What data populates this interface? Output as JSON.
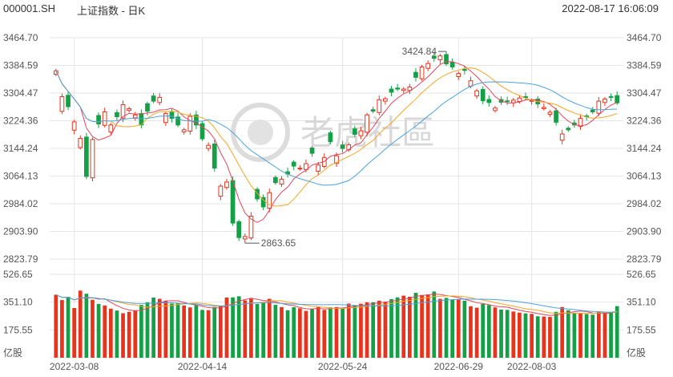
{
  "header": {
    "symbol": "000001.SH",
    "title": "上证指数 - 日K",
    "timestamp": "2022-08-17 16:06:09"
  },
  "watermark": {
    "text": "老虎社區"
  },
  "colors": {
    "up": "#e8341c",
    "down": "#15a047",
    "ma5": "#e0455b",
    "ma10": "#f5a623",
    "ma20": "#4aa3df",
    "grid": "#e6e6e6"
  },
  "chart_data": {
    "type": "candlestick",
    "price_ticks": [
      "3464.70",
      "3384.59",
      "3304.47",
      "3224.36",
      "3144.24",
      "3064.13",
      "2984.02",
      "2903.90",
      "2823.79"
    ],
    "volume_ticks": [
      "526.65",
      "351.10",
      "175.55"
    ],
    "volume_unit": "亿股",
    "x_ticks": [
      "2022-03-08",
      "2022-04-14",
      "2022-05-24",
      "2022-06-29",
      "2022-08-03"
    ],
    "annotations": {
      "high": "3424.84",
      "low": "2863.65"
    },
    "price_range": [
      2823.79,
      3464.7
    ],
    "volume_range": [
      0,
      526.65
    ],
    "grid": true,
    "moving_averages": [
      "MA5",
      "MA10",
      "MA20"
    ],
    "closes": [
      3369,
      3294,
      3265,
      3221,
      3173,
      3063,
      3170,
      3215,
      3250,
      3212,
      3236,
      3271,
      3259,
      3241,
      3212,
      3252,
      3281,
      3292,
      3245,
      3231,
      3212,
      3198,
      3237,
      3212,
      3172,
      3153,
      3087,
      3035,
      3047,
      2928,
      2886,
      2889,
      2948,
      2998,
      2975,
      3016,
      3045,
      3055,
      3070,
      3093,
      3087,
      3100,
      3130,
      3096,
      3118,
      3164,
      3123,
      3144,
      3155,
      3185,
      3195,
      3241,
      3252,
      3285,
      3288,
      3307,
      3316,
      3316,
      3322,
      3350,
      3380,
      3390,
      3405,
      3412,
      3389,
      3380,
      3361,
      3370,
      3340,
      3311,
      3282,
      3277,
      3261,
      3278,
      3280,
      3284,
      3290,
      3291,
      3283,
      3273,
      3263,
      3249,
      3220,
      3186,
      3198,
      3212,
      3231,
      3237,
      3250,
      3281,
      3287,
      3293,
      3276
    ],
    "volumes": [
      398,
      364,
      385,
      314,
      424,
      404,
      366,
      340,
      330,
      310,
      298,
      281,
      290,
      300,
      334,
      350,
      380,
      372,
      358,
      342,
      345,
      330,
      318,
      331,
      302,
      300,
      320,
      325,
      380,
      381,
      388,
      362,
      372,
      340,
      345,
      372,
      334,
      320,
      300,
      319,
      312,
      296,
      310,
      320,
      302,
      318,
      320,
      312,
      342,
      330,
      341,
      350,
      350,
      360,
      354,
      370,
      381,
      392,
      385,
      410,
      396,
      400,
      418,
      372,
      378,
      365,
      370,
      360,
      325,
      316,
      340,
      332,
      318,
      304,
      302,
      292,
      285,
      280,
      277,
      262,
      260,
      258,
      290,
      320,
      300,
      284,
      280,
      276,
      272,
      290,
      286,
      289,
      326
    ],
    "up_flags": [
      1,
      1,
      0,
      1,
      1,
      0,
      1,
      0,
      1,
      1,
      0,
      1,
      1,
      1,
      0,
      0,
      0,
      1,
      1,
      0,
      0,
      1,
      1,
      0,
      0,
      1,
      0,
      1,
      1,
      0,
      0,
      1,
      1,
      0,
      0,
      1,
      0,
      1,
      0,
      0,
      1,
      1,
      0,
      1,
      1,
      0,
      1,
      0,
      1,
      0,
      1,
      1,
      0,
      1,
      1,
      0,
      0,
      1,
      1,
      0,
      1,
      1,
      0,
      1,
      0,
      0,
      1,
      0,
      1,
      1,
      0,
      0,
      1,
      0,
      0,
      1,
      1,
      0,
      1,
      0,
      1,
      1,
      0,
      1,
      0,
      0,
      1,
      0,
      0,
      1,
      1,
      0,
      0
    ]
  }
}
